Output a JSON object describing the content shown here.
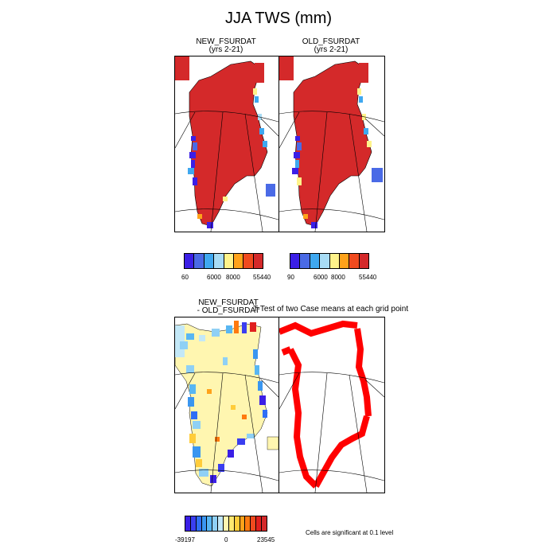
{
  "title": "JJA TWS (mm)",
  "panels": {
    "top_left": {
      "title": "NEW_FSURDAT",
      "subtitle": "(yrs 2-21)"
    },
    "top_right": {
      "title": "OLD_FSURDAT",
      "subtitle": "(yrs 2-21)"
    },
    "bottom_left": {
      "title_line1": "NEW_FSURDAT",
      "title_line2": "- OLD_FSURDAT"
    },
    "bottom_right": {
      "title": "T-Test of two Case means at each grid point"
    }
  },
  "colorbars": {
    "top_left": {
      "labels": [
        "60",
        "6000",
        "8000",
        "55440"
      ],
      "colors": [
        "#3b1fe6",
        "#4a6ae6",
        "#3fa8f0",
        "#a8dcf5",
        "#fff38a",
        "#ffa21a",
        "#f04a1e",
        "#d4292a"
      ]
    },
    "top_right": {
      "labels": [
        "90",
        "6000",
        "8000",
        "55440"
      ],
      "colors": [
        "#3b1fe6",
        "#4a6ae6",
        "#3fa8f0",
        "#a8dcf5",
        "#fff38a",
        "#ffa21a",
        "#f04a1e",
        "#d4292a"
      ]
    },
    "bottom": {
      "labels": [
        "-39197",
        "0",
        "23545"
      ],
      "colors": [
        "#3b1fe6",
        "#3a3ef0",
        "#2f6ef5",
        "#3a96f0",
        "#58b6f2",
        "#8fd0f5",
        "#c3e8f7",
        "#fff6b0",
        "#ffe870",
        "#ffcc3a",
        "#ffa21a",
        "#ff7a10",
        "#f04a1e",
        "#e0201e",
        "#d4292a"
      ]
    }
  },
  "footnote": "Cells are significant at 0.1 level",
  "colors": {
    "land": "#d4292a",
    "signif": "#ff0000",
    "diff_base": "#fff6b0"
  }
}
